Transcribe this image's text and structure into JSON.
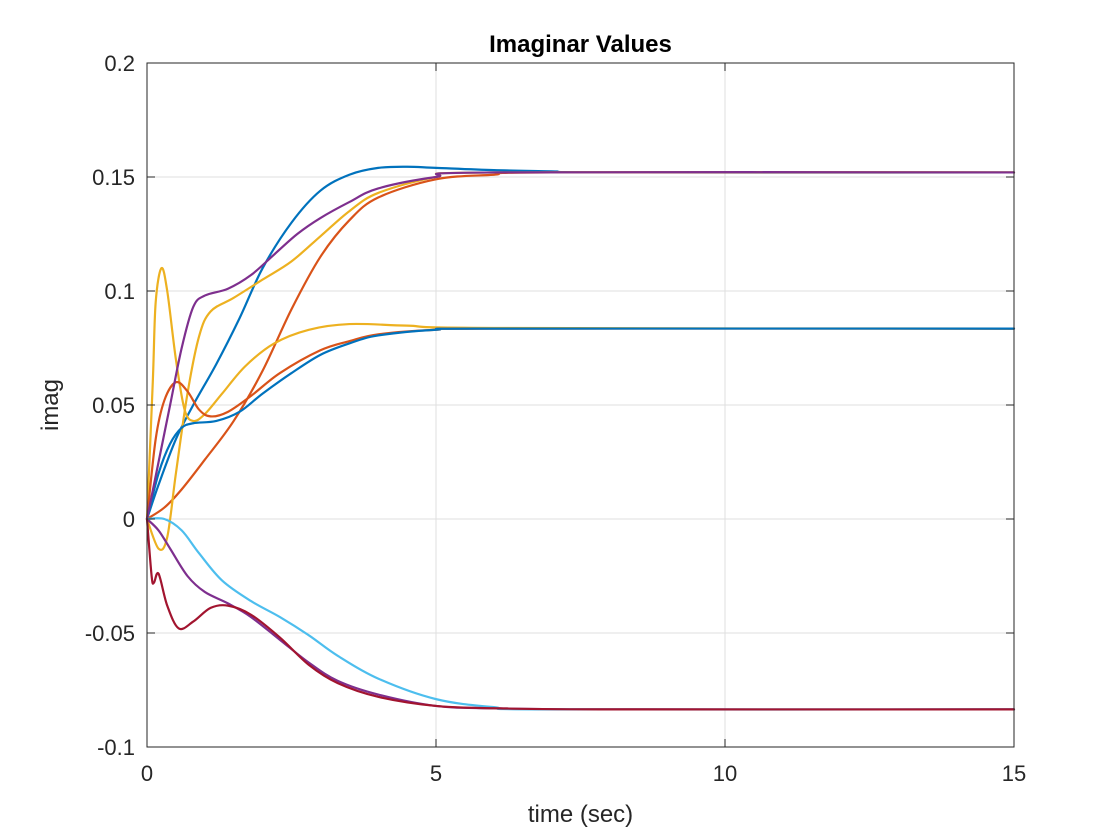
{
  "chart_data": {
    "type": "line",
    "title": "Imaginar Values",
    "xlabel": "time (sec)",
    "ylabel": "imag",
    "xlim": [
      0,
      15
    ],
    "ylim": [
      -0.1,
      0.2
    ],
    "xticks": [
      0,
      5,
      10,
      15
    ],
    "xtick_labels": [
      "0",
      "5",
      "10",
      "15"
    ],
    "yticks": [
      -0.1,
      -0.05,
      0,
      0.05,
      0.1,
      0.15,
      0.2
    ],
    "ytick_labels": [
      "-0.1",
      "-0.05",
      "0",
      "0.05",
      "0.1",
      "0.15",
      "0.2"
    ],
    "grid": true,
    "series": [
      {
        "color": "#0072BD",
        "points": [
          [
            0,
            0
          ],
          [
            0.2,
            0.015
          ],
          [
            0.5,
            0.035
          ],
          [
            0.8,
            0.05
          ],
          [
            1.2,
            0.068
          ],
          [
            1.6,
            0.088
          ],
          [
            2,
            0.11
          ],
          [
            2.5,
            0.13
          ],
          [
            3,
            0.144
          ],
          [
            3.5,
            0.151
          ],
          [
            4,
            0.154
          ],
          [
            4.5,
            0.1545
          ],
          [
            5,
            0.154
          ],
          [
            6,
            0.153
          ],
          [
            7,
            0.1525
          ],
          [
            8,
            0.152
          ],
          [
            15,
            0.152
          ]
        ]
      },
      {
        "color": "#D95319",
        "points": [
          [
            0,
            0
          ],
          [
            0.3,
            0.005
          ],
          [
            0.6,
            0.013
          ],
          [
            1,
            0.026
          ],
          [
            1.5,
            0.043
          ],
          [
            2,
            0.065
          ],
          [
            2.5,
            0.092
          ],
          [
            3,
            0.115
          ],
          [
            3.5,
            0.131
          ],
          [
            4,
            0.141
          ],
          [
            5,
            0.149
          ],
          [
            6,
            0.151
          ],
          [
            7,
            0.152
          ],
          [
            15,
            0.152
          ]
        ]
      },
      {
        "color": "#EDB120",
        "points": [
          [
            0,
            0
          ],
          [
            0.1,
            0.06
          ],
          [
            0.15,
            0.095
          ],
          [
            0.25,
            0.11
          ],
          [
            0.35,
            0.1
          ],
          [
            0.5,
            0.07
          ],
          [
            0.65,
            0.048
          ],
          [
            0.8,
            0.043
          ],
          [
            1,
            0.046
          ],
          [
            1.3,
            0.055
          ],
          [
            1.7,
            0.067
          ],
          [
            2.2,
            0.077
          ],
          [
            2.8,
            0.083
          ],
          [
            3.5,
            0.0855
          ],
          [
            4.5,
            0.0848
          ],
          [
            6,
            0.0838
          ],
          [
            15,
            0.0835
          ]
        ]
      },
      {
        "color": "#EDB120",
        "points": [
          [
            0,
            0
          ],
          [
            0.2,
            -0.013
          ],
          [
            0.35,
            -0.008
          ],
          [
            0.5,
            0.02
          ],
          [
            0.7,
            0.055
          ],
          [
            0.9,
            0.08
          ],
          [
            1.1,
            0.091
          ],
          [
            1.5,
            0.097
          ],
          [
            2,
            0.105
          ],
          [
            2.5,
            0.113
          ],
          [
            3,
            0.124
          ],
          [
            3.5,
            0.135
          ],
          [
            4,
            0.143
          ],
          [
            5,
            0.15
          ],
          [
            6,
            0.152
          ],
          [
            15,
            0.152
          ]
        ]
      },
      {
        "color": "#D95319",
        "points": [
          [
            0,
            0
          ],
          [
            0.15,
            0.035
          ],
          [
            0.3,
            0.052
          ],
          [
            0.5,
            0.06
          ],
          [
            0.7,
            0.056
          ],
          [
            0.9,
            0.048
          ],
          [
            1.1,
            0.045
          ],
          [
            1.4,
            0.047
          ],
          [
            1.8,
            0.054
          ],
          [
            2.3,
            0.064
          ],
          [
            3,
            0.074
          ],
          [
            3.5,
            0.078
          ],
          [
            4,
            0.081
          ],
          [
            5,
            0.083
          ],
          [
            6,
            0.0835
          ],
          [
            15,
            0.0835
          ]
        ]
      },
      {
        "color": "#0072BD",
        "points": [
          [
            0,
            0
          ],
          [
            0.2,
            0.02
          ],
          [
            0.4,
            0.033
          ],
          [
            0.6,
            0.04
          ],
          [
            0.8,
            0.042
          ],
          [
            1.2,
            0.043
          ],
          [
            1.6,
            0.047
          ],
          [
            2,
            0.055
          ],
          [
            2.5,
            0.064
          ],
          [
            3,
            0.072
          ],
          [
            3.5,
            0.077
          ],
          [
            4,
            0.0805
          ],
          [
            5,
            0.083
          ],
          [
            6,
            0.0835
          ],
          [
            15,
            0.0835
          ]
        ]
      },
      {
        "color": "#7E2F8E",
        "points": [
          [
            0,
            0
          ],
          [
            0.2,
            0.025
          ],
          [
            0.4,
            0.05
          ],
          [
            0.6,
            0.075
          ],
          [
            0.8,
            0.093
          ],
          [
            1,
            0.098
          ],
          [
            1.4,
            0.101
          ],
          [
            1.8,
            0.107
          ],
          [
            2.2,
            0.116
          ],
          [
            2.6,
            0.125
          ],
          [
            3,
            0.132
          ],
          [
            3.5,
            0.139
          ],
          [
            4,
            0.145
          ],
          [
            5,
            0.15
          ],
          [
            6,
            0.152
          ],
          [
            15,
            0.152
          ]
        ]
      },
      {
        "color": "#7E2F8E",
        "points": [
          [
            0,
            0
          ],
          [
            0.2,
            -0.005
          ],
          [
            0.4,
            -0.013
          ],
          [
            0.7,
            -0.025
          ],
          [
            1,
            -0.032
          ],
          [
            1.4,
            -0.037
          ],
          [
            1.8,
            -0.043
          ],
          [
            2.3,
            -0.053
          ],
          [
            2.8,
            -0.063
          ],
          [
            3.3,
            -0.071
          ],
          [
            4,
            -0.077
          ],
          [
            5,
            -0.082
          ],
          [
            6,
            -0.083
          ],
          [
            8,
            -0.0835
          ],
          [
            15,
            -0.0835
          ]
        ]
      },
      {
        "color": "#4DBEEE",
        "points": [
          [
            0,
            0
          ],
          [
            0.3,
            0
          ],
          [
            0.6,
            -0.005
          ],
          [
            0.9,
            -0.015
          ],
          [
            1.3,
            -0.027
          ],
          [
            1.8,
            -0.036
          ],
          [
            2.3,
            -0.043
          ],
          [
            2.8,
            -0.051
          ],
          [
            3.3,
            -0.06
          ],
          [
            4,
            -0.07
          ],
          [
            5,
            -0.079
          ],
          [
            6,
            -0.0825
          ],
          [
            7,
            -0.0835
          ],
          [
            15,
            -0.0835
          ]
        ]
      },
      {
        "color": "#A2142F",
        "points": [
          [
            0,
            0
          ],
          [
            0.08,
            -0.025
          ],
          [
            0.12,
            -0.028
          ],
          [
            0.2,
            -0.024
          ],
          [
            0.35,
            -0.038
          ],
          [
            0.55,
            -0.048
          ],
          [
            0.8,
            -0.045
          ],
          [
            1.1,
            -0.039
          ],
          [
            1.4,
            -0.038
          ],
          [
            1.8,
            -0.042
          ],
          [
            2.3,
            -0.052
          ],
          [
            2.8,
            -0.064
          ],
          [
            3.3,
            -0.072
          ],
          [
            4,
            -0.078
          ],
          [
            5,
            -0.082
          ],
          [
            6,
            -0.083
          ],
          [
            8,
            -0.0835
          ],
          [
            15,
            -0.0835
          ]
        ]
      }
    ]
  }
}
